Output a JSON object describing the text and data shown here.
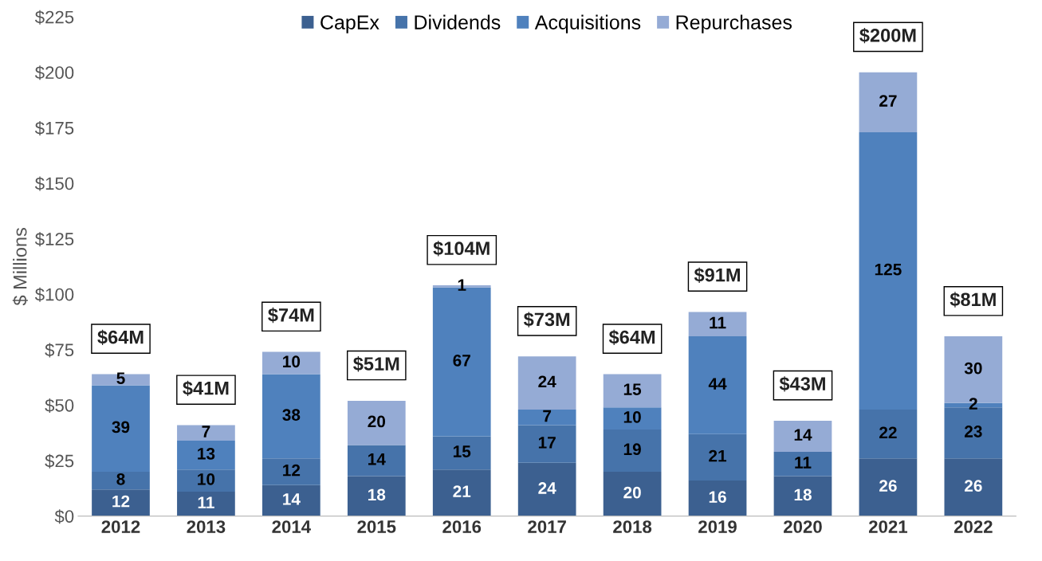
{
  "chart_data": {
    "type": "bar",
    "stacked": true,
    "ylabel": "$ Millions",
    "categories": [
      "2012",
      "2013",
      "2014",
      "2015",
      "2016",
      "2017",
      "2018",
      "2019",
      "2020",
      "2021",
      "2022"
    ],
    "series": [
      {
        "name": "CapEx",
        "color": "#3c6090",
        "values": [
          12,
          11,
          14,
          18,
          21,
          24,
          20,
          16,
          18,
          26,
          26
        ]
      },
      {
        "name": "Dividends",
        "color": "#4673aa",
        "values": [
          8,
          10,
          12,
          14,
          15,
          17,
          19,
          21,
          11,
          22,
          23
        ]
      },
      {
        "name": "Acquisitions",
        "color": "#4f81bd",
        "values": [
          39,
          13,
          38,
          null,
          67,
          7,
          10,
          44,
          null,
          125,
          2
        ]
      },
      {
        "name": "Repurchases",
        "color": "#95abd5",
        "values": [
          5,
          7,
          10,
          20,
          1,
          24,
          15,
          11,
          14,
          27,
          30
        ]
      }
    ],
    "data_labels": true,
    "totals": [
      "$64M",
      "$41M",
      "$74M",
      "$51M",
      "$104M",
      "$73M",
      "$64M",
      "$91M",
      "$43M",
      "$200M",
      "$81M"
    ],
    "ylim": [
      0,
      225
    ],
    "yticks": [
      {
        "value": 0,
        "label": "$0"
      },
      {
        "value": 25,
        "label": "$25"
      },
      {
        "value": 50,
        "label": "$50"
      },
      {
        "value": 75,
        "label": "$75"
      },
      {
        "value": 100,
        "label": "$100"
      },
      {
        "value": 125,
        "label": "$125"
      },
      {
        "value": 150,
        "label": "$150"
      },
      {
        "value": 175,
        "label": "$175"
      },
      {
        "value": 200,
        "label": "$200"
      },
      {
        "value": 225,
        "label": "$225"
      }
    ],
    "grid": false,
    "legend": "top"
  }
}
